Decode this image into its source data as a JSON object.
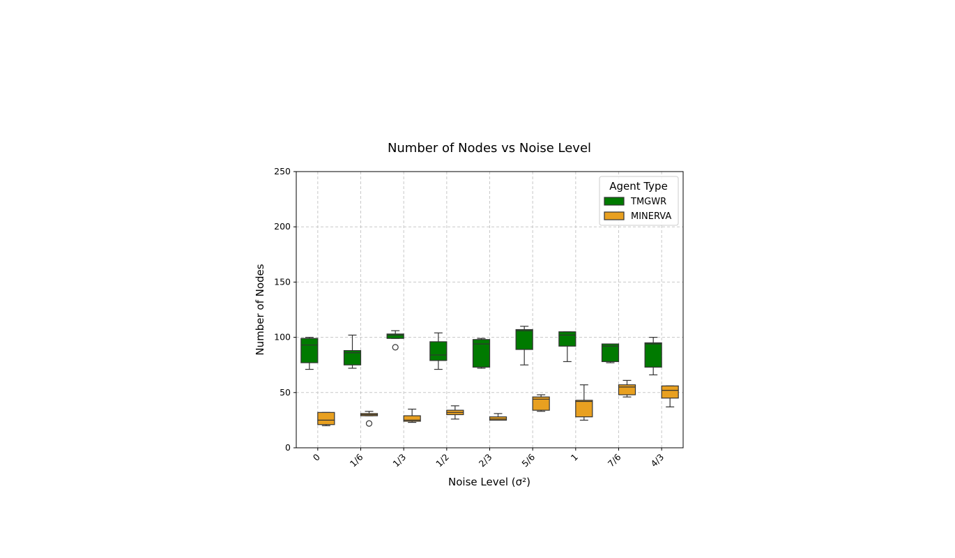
{
  "chart_data": {
    "type": "box",
    "title": "Number of Nodes vs Noise Level",
    "xlabel": "Noise Level (σ²)",
    "ylabel": "Number of Nodes",
    "ylim": [
      0,
      250
    ],
    "yticks": [
      0,
      50,
      100,
      150,
      200,
      250
    ],
    "categories": [
      "0",
      "1/6",
      "1/3",
      "1/2",
      "2/3",
      "5/6",
      "1",
      "7/6",
      "4/3"
    ],
    "grid": true,
    "legend": {
      "title": "Agent Type",
      "placement": "top-right"
    },
    "series": [
      {
        "name": "TMGWR",
        "color": "#007a00",
        "boxes": [
          {
            "whislo": 71,
            "q1": 77,
            "med": 93,
            "q3": 99,
            "whishi": 100,
            "fliers": []
          },
          {
            "whislo": 72,
            "q1": 75,
            "med": 86,
            "q3": 88,
            "whishi": 102,
            "fliers": []
          },
          {
            "whislo": 99,
            "q1": 99,
            "med": 102,
            "q3": 103,
            "whishi": 106,
            "fliers": [
              91
            ]
          },
          {
            "whislo": 71,
            "q1": 79,
            "med": 84,
            "q3": 96,
            "whishi": 104,
            "fliers": []
          },
          {
            "whislo": 72,
            "q1": 73,
            "med": 94,
            "q3": 98,
            "whishi": 99,
            "fliers": []
          },
          {
            "whislo": 75,
            "q1": 89,
            "med": 106,
            "q3": 107,
            "whishi": 110,
            "fliers": []
          },
          {
            "whislo": 78,
            "q1": 92,
            "med": 102,
            "q3": 105,
            "whishi": 105,
            "fliers": []
          },
          {
            "whislo": 77,
            "q1": 78,
            "med": 92,
            "q3": 94,
            "whishi": 94,
            "fliers": []
          },
          {
            "whislo": 66,
            "q1": 73,
            "med": 94,
            "q3": 95,
            "whishi": 100,
            "fliers": []
          }
        ]
      },
      {
        "name": "MINERVA",
        "color": "#e8a020",
        "boxes": [
          {
            "whislo": 20,
            "q1": 21,
            "med": 25,
            "q3": 32,
            "whishi": 32,
            "fliers": []
          },
          {
            "whislo": 29,
            "q1": 29,
            "med": 30,
            "q3": 31,
            "whishi": 33,
            "fliers": [
              22
            ]
          },
          {
            "whislo": 23,
            "q1": 24,
            "med": 25,
            "q3": 29,
            "whishi": 35,
            "fliers": []
          },
          {
            "whislo": 26,
            "q1": 30,
            "med": 32,
            "q3": 34,
            "whishi": 38,
            "fliers": []
          },
          {
            "whislo": 25,
            "q1": 25,
            "med": 26,
            "q3": 28,
            "whishi": 31,
            "fliers": []
          },
          {
            "whislo": 33,
            "q1": 34,
            "med": 44,
            "q3": 46,
            "whishi": 48,
            "fliers": []
          },
          {
            "whislo": 25,
            "q1": 28,
            "med": 42,
            "q3": 43,
            "whishi": 57,
            "fliers": []
          },
          {
            "whislo": 46,
            "q1": 48,
            "med": 55,
            "q3": 57,
            "whishi": 61,
            "fliers": []
          },
          {
            "whislo": 37,
            "q1": 45,
            "med": 52,
            "q3": 56,
            "whishi": 56,
            "fliers": []
          }
        ]
      }
    ]
  }
}
